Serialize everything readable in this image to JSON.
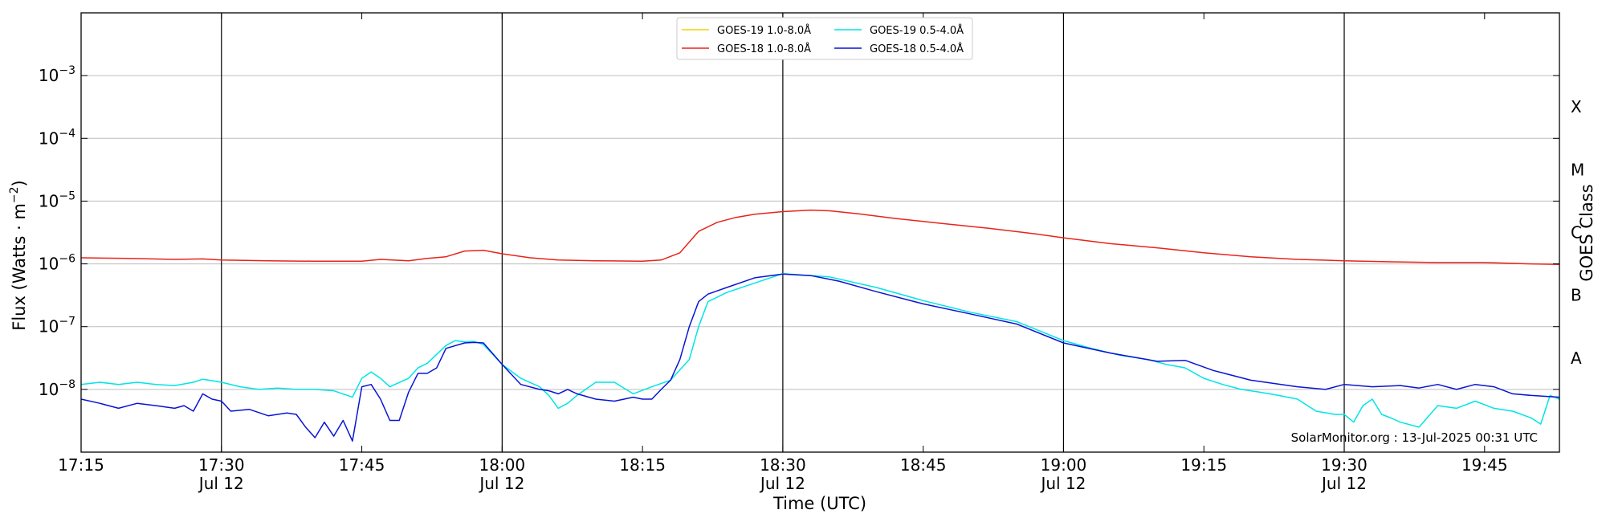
{
  "chart_data": {
    "type": "line",
    "xlabel": "Time (UTC)",
    "ylabel_main": "Flux (Watts · m",
    "ylabel_exp": "−2",
    "ylabel_close": ")",
    "ylabel_right": "GOES Class",
    "credit": "SolarMonitor.org : 13-Jul-2025 00:31 UTC",
    "x_range": [
      "17:15",
      "19:53"
    ],
    "ylim": [
      1e-09,
      0.01
    ],
    "y_scale": "log",
    "x_ticks": [
      {
        "t": "17:15",
        "label": "17:15",
        "sublabel": ""
      },
      {
        "t": "17:30",
        "label": "17:30",
        "sublabel": "Jul 12"
      },
      {
        "t": "17:45",
        "label": "17:45",
        "sublabel": ""
      },
      {
        "t": "18:00",
        "label": "18:00",
        "sublabel": "Jul 12"
      },
      {
        "t": "18:15",
        "label": "18:15",
        "sublabel": ""
      },
      {
        "t": "18:30",
        "label": "18:30",
        "sublabel": "Jul 12"
      },
      {
        "t": "18:45",
        "label": "18:45",
        "sublabel": ""
      },
      {
        "t": "19:00",
        "label": "19:00",
        "sublabel": "Jul 12"
      },
      {
        "t": "19:15",
        "label": "19:15",
        "sublabel": ""
      },
      {
        "t": "19:30",
        "label": "19:30",
        "sublabel": "Jul 12"
      },
      {
        "t": "19:45",
        "label": "19:45",
        "sublabel": ""
      }
    ],
    "vertical_lines": [
      "17:30",
      "18:00",
      "18:30",
      "19:00",
      "19:30"
    ],
    "y_ticks": [
      {
        "v": 1e-08,
        "base": "10",
        "exp": "−8"
      },
      {
        "v": 1e-07,
        "base": "10",
        "exp": "−7"
      },
      {
        "v": 1e-06,
        "base": "10",
        "exp": "−6"
      },
      {
        "v": 1e-05,
        "base": "10",
        "exp": "−5"
      },
      {
        "v": 0.0001,
        "base": "10",
        "exp": "−4"
      },
      {
        "v": 0.001,
        "base": "10",
        "exp": "−3"
      }
    ],
    "goes_classes": [
      {
        "label": "A",
        "v": 3.16e-08
      },
      {
        "label": "B",
        "v": 3.16e-07
      },
      {
        "label": "C",
        "v": 3.16e-06
      },
      {
        "label": "M",
        "v": 3.16e-05
      },
      {
        "label": "X",
        "v": 0.000316
      }
    ],
    "grid": true,
    "legend_position": "top-center",
    "series": [
      {
        "name": "GOES-19 1.0-8.0Å",
        "color": "#f2d400",
        "x": [],
        "y": []
      },
      {
        "name": "GOES-18 1.0-8.0Å",
        "color": "#e8231a",
        "x": [
          "17:15",
          "17:20",
          "17:25",
          "17:28",
          "17:30",
          "17:35",
          "17:40",
          "17:45",
          "17:47",
          "17:50",
          "17:52",
          "17:54",
          "17:56",
          "17:58",
          "18:00",
          "18:03",
          "18:06",
          "18:10",
          "18:15",
          "18:17",
          "18:19",
          "18:21",
          "18:23",
          "18:25",
          "18:27",
          "18:30",
          "18:33",
          "18:35",
          "18:38",
          "18:42",
          "18:47",
          "18:52",
          "18:57",
          "19:00",
          "19:05",
          "19:10",
          "19:15",
          "19:20",
          "19:25",
          "19:30",
          "19:35",
          "19:40",
          "19:45",
          "19:50",
          "19:53"
        ],
        "y": [
          1.25e-06,
          1.22e-06,
          1.18e-06,
          1.2e-06,
          1.15e-06,
          1.12e-06,
          1.1e-06,
          1.1e-06,
          1.18e-06,
          1.12e-06,
          1.22e-06,
          1.3e-06,
          1.6e-06,
          1.65e-06,
          1.45e-06,
          1.25e-06,
          1.15e-06,
          1.12e-06,
          1.1e-06,
          1.15e-06,
          1.5e-06,
          3.3e-06,
          4.6e-06,
          5.5e-06,
          6.2e-06,
          6.8e-06,
          7.2e-06,
          7e-06,
          6.3e-06,
          5.3e-06,
          4.4e-06,
          3.7e-06,
          3e-06,
          2.6e-06,
          2.1e-06,
          1.8e-06,
          1.5e-06,
          1.3e-06,
          1.18e-06,
          1.12e-06,
          1.08e-06,
          1.05e-06,
          1.05e-06,
          1e-06,
          9.8e-07
        ]
      },
      {
        "name": "GOES-19 0.5-4.0Å",
        "color": "#00e5e5",
        "x": [
          "17:15",
          "17:17",
          "17:19",
          "17:21",
          "17:23",
          "17:25",
          "17:27",
          "17:28",
          "17:30",
          "17:32",
          "17:34",
          "17:36",
          "17:38",
          "17:40",
          "17:42",
          "17:44",
          "17:45",
          "17:46",
          "17:47",
          "17:48",
          "17:50",
          "17:51",
          "17:52",
          "17:54",
          "17:55",
          "17:56",
          "17:57",
          "17:58",
          "18:00",
          "18:02",
          "18:04",
          "18:05",
          "18:06",
          "18:07",
          "18:08",
          "18:10",
          "18:12",
          "18:14",
          "18:16",
          "18:18",
          "18:20",
          "18:21",
          "18:22",
          "18:24",
          "18:30",
          "18:35",
          "18:40",
          "18:45",
          "18:50",
          "18:55",
          "19:00",
          "19:03",
          "19:06",
          "19:09",
          "19:11",
          "19:13",
          "19:15",
          "19:17",
          "19:19",
          "19:21",
          "19:23",
          "19:25",
          "19:27",
          "19:29",
          "19:30",
          "19:31",
          "19:32",
          "19:33",
          "19:34",
          "19:35",
          "19:36",
          "19:38",
          "19:40",
          "19:42",
          "19:44",
          "19:46",
          "19:48",
          "19:50",
          "19:51",
          "19:52",
          "19:53"
        ],
        "y": [
          1.2e-08,
          1.3e-08,
          1.2e-08,
          1.3e-08,
          1.2e-08,
          1.15e-08,
          1.3e-08,
          1.45e-08,
          1.3e-08,
          1.1e-08,
          1e-08,
          1.05e-08,
          1e-08,
          1e-08,
          9.5e-09,
          7.5e-09,
          1.5e-08,
          1.9e-08,
          1.5e-08,
          1.1e-08,
          1.5e-08,
          2.2e-08,
          2.6e-08,
          5e-08,
          6e-08,
          5.7e-08,
          5.8e-08,
          5.2e-08,
          2.5e-08,
          1.5e-08,
          1.1e-08,
          8e-09,
          5e-09,
          6e-09,
          8e-09,
          1.3e-08,
          1.3e-08,
          8.5e-09,
          1.1e-08,
          1.4e-08,
          3e-08,
          1e-07,
          2.5e-07,
          3.5e-07,
          7e-07,
          6.2e-07,
          4.2e-07,
          2.6e-07,
          1.7e-07,
          1.2e-07,
          6e-08,
          4.5e-08,
          3.5e-08,
          3e-08,
          2.5e-08,
          2.2e-08,
          1.5e-08,
          1.2e-08,
          1e-08,
          9e-09,
          8e-09,
          7e-09,
          4.5e-09,
          4e-09,
          4e-09,
          3e-09,
          5.5e-09,
          7e-09,
          4e-09,
          3.5e-09,
          3e-09,
          2.5e-09,
          5.5e-09,
          5e-09,
          6.5e-09,
          5e-09,
          4.5e-09,
          3.5e-09,
          2.8e-09,
          8e-09,
          7e-09
        ]
      },
      {
        "name": "GOES-18 0.5-4.0Å",
        "color": "#0a14d4",
        "x": [
          "17:15",
          "17:17",
          "17:19",
          "17:21",
          "17:23",
          "17:25",
          "17:26",
          "17:27",
          "17:28",
          "17:29",
          "17:30",
          "17:31",
          "17:33",
          "17:35",
          "17:37",
          "17:38",
          "17:39",
          "17:40",
          "17:41",
          "17:42",
          "17:43",
          "17:44",
          "17:45",
          "17:46",
          "17:47",
          "17:48",
          "17:49",
          "17:50",
          "17:51",
          "17:52",
          "17:53",
          "17:54",
          "17:56",
          "17:57",
          "17:58",
          "18:00",
          "18:02",
          "18:04",
          "18:05",
          "18:06",
          "18:07",
          "18:08",
          "18:10",
          "18:12",
          "18:14",
          "18:15",
          "18:16",
          "18:17",
          "18:18",
          "18:19",
          "18:20",
          "18:21",
          "18:22",
          "18:24",
          "18:27",
          "18:30",
          "18:33",
          "18:36",
          "18:40",
          "18:45",
          "18:50",
          "18:55",
          "19:00",
          "19:05",
          "19:10",
          "19:13",
          "19:16",
          "19:20",
          "19:25",
          "19:28",
          "19:30",
          "19:33",
          "19:36",
          "19:38",
          "19:40",
          "19:42",
          "19:44",
          "19:46",
          "19:48",
          "19:50",
          "19:53"
        ],
        "y": [
          7e-09,
          6e-09,
          5e-09,
          6e-09,
          5.5e-09,
          5e-09,
          5.5e-09,
          4.5e-09,
          8.5e-09,
          7e-09,
          6.5e-09,
          4.5e-09,
          4.8e-09,
          3.8e-09,
          4.2e-09,
          4e-09,
          2.5e-09,
          1.7e-09,
          3e-09,
          1.8e-09,
          3.2e-09,
          1.5e-09,
          1.1e-08,
          1.2e-08,
          7e-09,
          3.2e-09,
          3.2e-09,
          9e-09,
          1.8e-08,
          1.8e-08,
          2.2e-08,
          4.5e-08,
          5.5e-08,
          5.6e-08,
          5.5e-08,
          2.5e-08,
          1.2e-08,
          1e-08,
          9.5e-09,
          8.5e-09,
          1e-08,
          8.5e-09,
          7e-09,
          6.5e-09,
          7.5e-09,
          7e-09,
          7e-09,
          1e-08,
          1.4e-08,
          3e-08,
          1e-07,
          2.5e-07,
          3.3e-07,
          4.2e-07,
          6e-07,
          6.9e-07,
          6.5e-07,
          5.3e-07,
          3.6e-07,
          2.3e-07,
          1.6e-07,
          1.1e-07,
          5.5e-08,
          3.8e-08,
          2.8e-08,
          2.9e-08,
          2e-08,
          1.4e-08,
          1.1e-08,
          1e-08,
          1.2e-08,
          1.1e-08,
          1.15e-08,
          1.05e-08,
          1.2e-08,
          1e-08,
          1.2e-08,
          1.1e-08,
          8.5e-09,
          8e-09,
          7.5e-09
        ]
      }
    ]
  }
}
